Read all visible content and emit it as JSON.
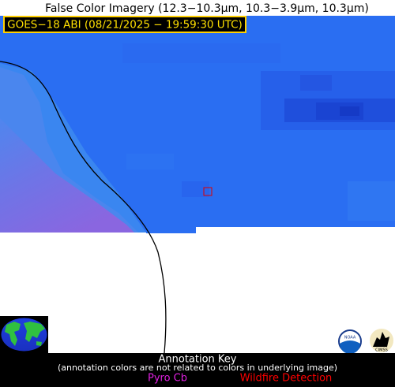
{
  "header": {
    "title": "False Color Imagery (12.3−10.3µm, 10.3−3.9µm, 10.3µm)",
    "satellite_label": "GOES−18 ABI (08/21/2025 − 19:59:30 UTC)"
  },
  "logos": {
    "noaa": "NOAA",
    "cimss": "CIMSS"
  },
  "annotation_key": {
    "title": "Annotation Key",
    "note": "(annotation colors are not related to colors in underlying image)",
    "items": [
      {
        "label": "Pyro Cb",
        "color": "#e020e0"
      },
      {
        "label": "Wildfire Detection",
        "color": "#ff0000"
      }
    ]
  }
}
